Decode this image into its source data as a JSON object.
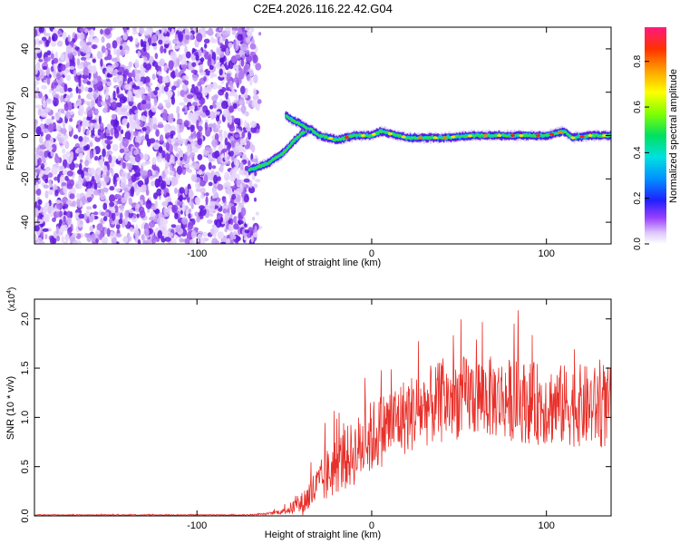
{
  "title": "C2E4.2026.116.22.42.G04",
  "chart_data": [
    {
      "type": "heatmap",
      "xlabel": "Height of straight line (km)",
      "ylabel": "Frequency (Hz)",
      "xlim": [
        -193,
        137
      ],
      "ylim": [
        -50,
        50
      ],
      "xticks": [
        -100,
        0,
        100
      ],
      "xtick_labels": [
        "-100",
        "0",
        "100"
      ],
      "yticks": [
        -40,
        -20,
        0,
        20,
        40
      ],
      "ytick_labels": [
        "-40",
        "-20",
        "0",
        "20",
        "40"
      ],
      "noise_region_x": [
        -193,
        -63
      ],
      "signal_track": {
        "x": [
          -70,
          -60,
          -52,
          -45,
          -40,
          -35,
          -30,
          -20,
          -10,
          0,
          5,
          20,
          40,
          60,
          80,
          100,
          110,
          115,
          125,
          137
        ],
        "freq": [
          -16,
          -13,
          -9,
          -3,
          1,
          3,
          0,
          -2,
          0,
          0,
          2,
          -1,
          -1,
          0,
          0,
          0,
          2,
          -1,
          0,
          0
        ]
      },
      "branch_track": {
        "x": [
          -49,
          -45,
          -40,
          -36
        ],
        "freq": [
          9,
          7,
          5,
          3
        ]
      },
      "colorbar": {
        "label": "Normalized spectral amplitude",
        "range": [
          0,
          0.95
        ],
        "ticks": [
          0.0,
          0.2,
          0.4,
          0.6,
          0.8
        ],
        "tick_labels": [
          "0.0",
          "0.2",
          "0.4",
          "0.6",
          "0.8"
        ]
      }
    },
    {
      "type": "line",
      "xlabel": "Height of straight line (km)",
      "ylabel": "SNR (10 * v/v)",
      "y_multiplier_label": "(x10",
      "y_multiplier_exp": "4",
      "y_multiplier_close": ")",
      "xlim": [
        -193,
        137
      ],
      "ylim": [
        0,
        2.2
      ],
      "xticks": [
        -100,
        0,
        100
      ],
      "xtick_labels": [
        "-100",
        "0",
        "100"
      ],
      "yticks": [
        0,
        0.5,
        1.0,
        1.5,
        2.0
      ],
      "ytick_labels": [
        "0.0",
        "0.5",
        "1.0",
        "1.5",
        "2.0"
      ],
      "line_color": "#e8302a",
      "series": [
        {
          "x": [
            -193,
            -150,
            -100,
            -70,
            -60,
            -50,
            -40,
            -35,
            -30,
            -25,
            -20,
            -15,
            -10,
            -5,
            0,
            10,
            20,
            30,
            40,
            50,
            60,
            70,
            80,
            90,
            100,
            110,
            120,
            130,
            137
          ],
          "y": [
            0.01,
            0.01,
            0.01,
            0.01,
            0.02,
            0.05,
            0.12,
            0.22,
            0.32,
            0.42,
            0.52,
            0.58,
            0.64,
            0.72,
            0.8,
            0.93,
            1.02,
            1.1,
            1.15,
            1.2,
            1.22,
            1.2,
            1.18,
            1.15,
            1.13,
            1.12,
            1.12,
            1.1,
            1.1
          ],
          "amp": [
            0.004,
            0.004,
            0.004,
            0.005,
            0.01,
            0.03,
            0.12,
            0.18,
            0.22,
            0.28,
            0.3,
            0.32,
            0.34,
            0.36,
            0.38,
            0.38,
            0.4,
            0.4,
            0.42,
            0.42,
            0.42,
            0.42,
            0.42,
            0.42,
            0.42,
            0.42,
            0.42,
            0.42,
            0.42
          ]
        }
      ]
    }
  ]
}
